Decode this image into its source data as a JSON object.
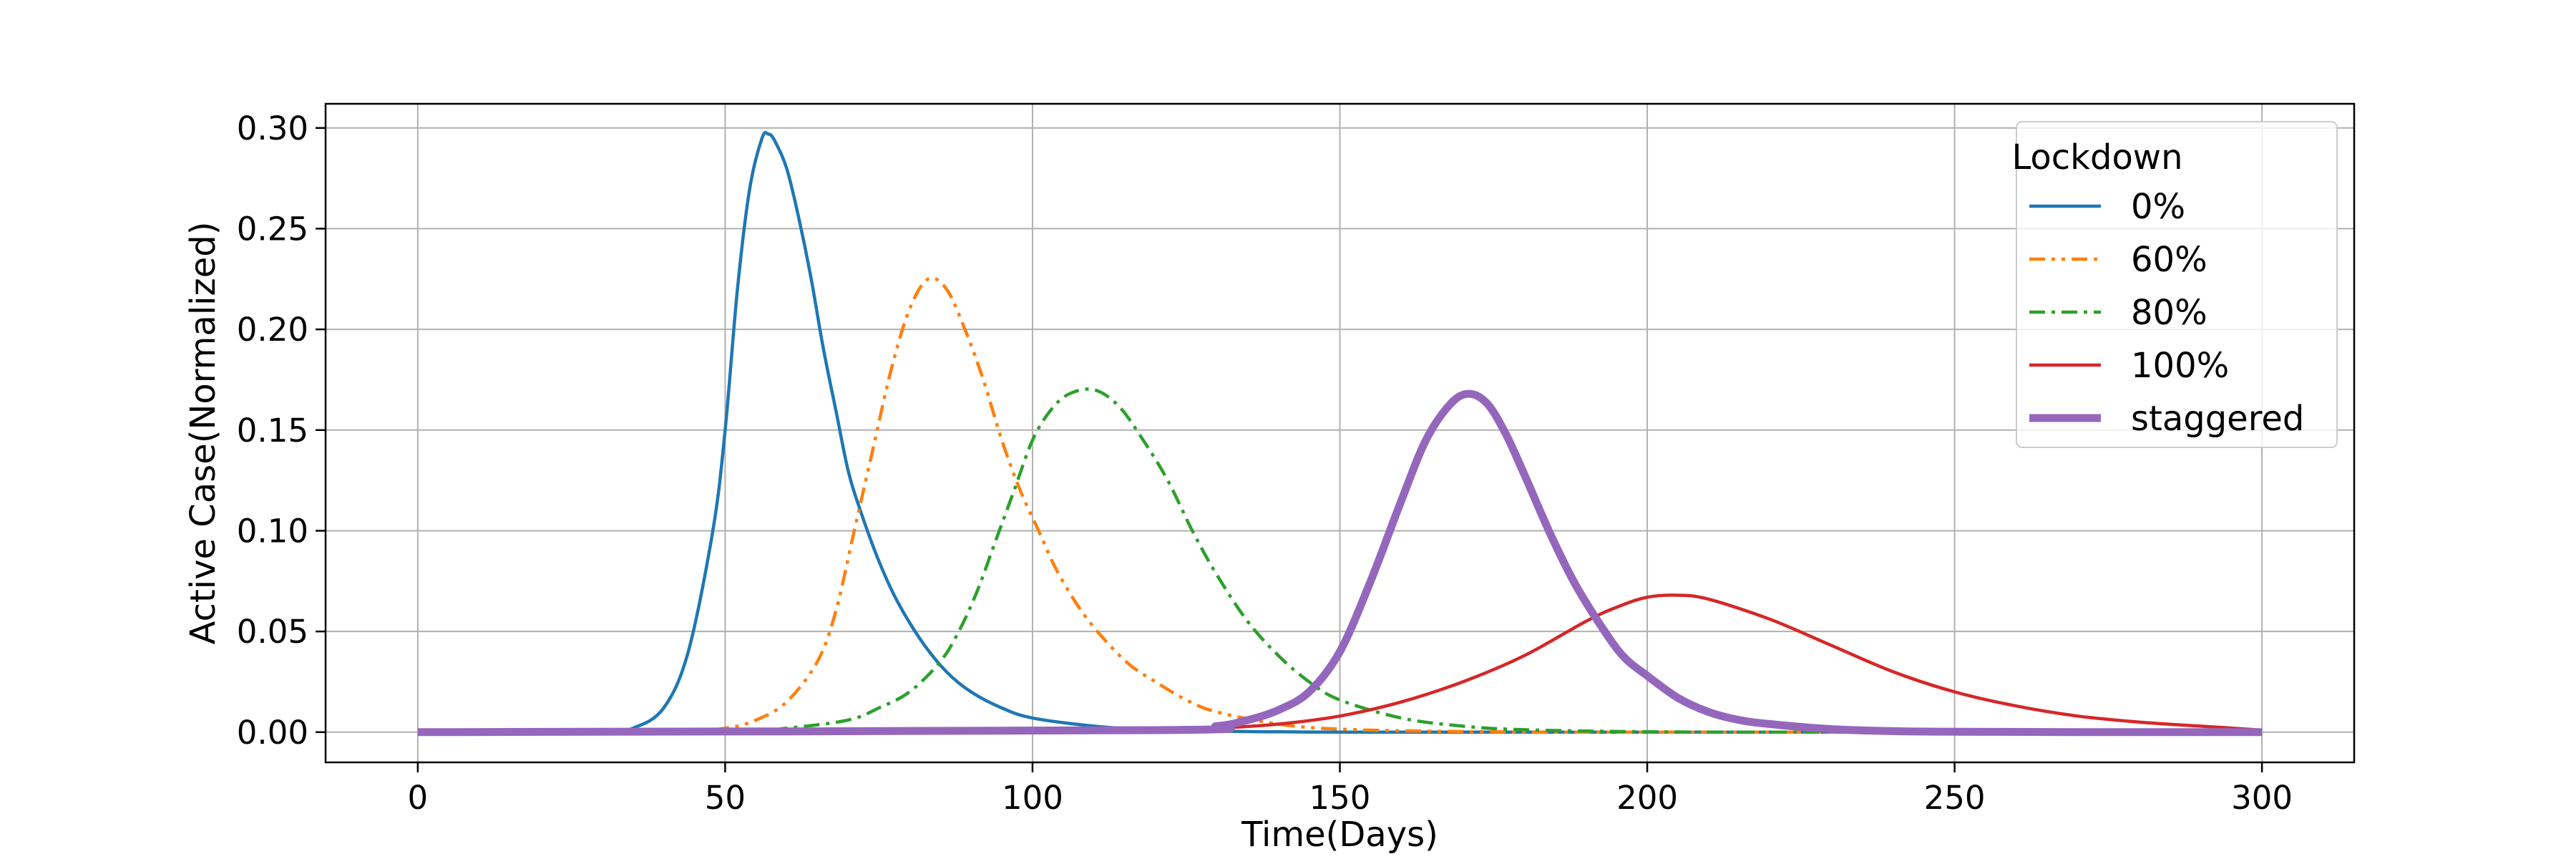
{
  "chart_data": {
    "type": "line",
    "title": "",
    "xlabel": "Time(Days)",
    "ylabel": "Active Case(Normalized)",
    "xlim": [
      -15,
      315
    ],
    "ylim": [
      -0.015,
      0.312
    ],
    "xticks": [
      0,
      50,
      100,
      150,
      200,
      250,
      300
    ],
    "xtick_labels": [
      "0",
      "50",
      "100",
      "150",
      "200",
      "250",
      "300"
    ],
    "yticks": [
      0.0,
      0.05,
      0.1,
      0.15,
      0.2,
      0.25,
      0.3
    ],
    "ytick_labels": [
      "0.00",
      "0.05",
      "0.10",
      "0.15",
      "0.20",
      "0.25",
      "0.30"
    ],
    "grid": true,
    "legend": {
      "title": "Lockdown",
      "placement": "top-right"
    },
    "series": [
      {
        "name": "0%",
        "color": "#1f77b4",
        "style": "solid",
        "x": [
          0,
          30,
          35,
          40,
          44,
          48,
          50,
          52,
          54,
          56,
          57,
          58,
          60,
          62,
          64,
          66,
          68,
          70,
          72,
          75,
          78,
          82,
          86,
          90,
          95,
          100,
          110,
          120,
          130,
          150,
          200,
          250,
          300
        ],
        "y": [
          0,
          0,
          0.002,
          0.012,
          0.04,
          0.1,
          0.15,
          0.22,
          0.27,
          0.295,
          0.297,
          0.294,
          0.28,
          0.255,
          0.225,
          0.19,
          0.16,
          0.13,
          0.11,
          0.085,
          0.065,
          0.045,
          0.03,
          0.02,
          0.012,
          0.007,
          0.003,
          0.001,
          0.0005,
          0,
          0,
          0,
          0
        ]
      },
      {
        "name": "60%",
        "color": "#ff7f0e",
        "style": "dashdotdot",
        "x": [
          0,
          40,
          50,
          55,
          60,
          65,
          68,
          71,
          74,
          77,
          80,
          83,
          86,
          89,
          92,
          95,
          98,
          101,
          104,
          108,
          112,
          116,
          120,
          125,
          130,
          140,
          150,
          170,
          200,
          250,
          300
        ],
        "y": [
          0,
          0,
          0.002,
          0.006,
          0.015,
          0.035,
          0.06,
          0.1,
          0.14,
          0.18,
          0.21,
          0.225,
          0.22,
          0.2,
          0.175,
          0.145,
          0.12,
          0.1,
          0.08,
          0.06,
          0.045,
          0.033,
          0.025,
          0.016,
          0.01,
          0.004,
          0.0015,
          0.0003,
          0,
          0,
          0
        ]
      },
      {
        "name": "80%",
        "color": "#2ca02c",
        "style": "dashdot",
        "x": [
          0,
          50,
          60,
          70,
          75,
          80,
          85,
          88,
          91,
          94,
          97,
          100,
          103,
          106,
          110,
          114,
          118,
          122,
          126,
          130,
          135,
          140,
          145,
          150,
          160,
          170,
          180,
          200,
          230,
          300
        ],
        "y": [
          0,
          0,
          0.002,
          0.006,
          0.012,
          0.02,
          0.035,
          0.05,
          0.07,
          0.095,
          0.12,
          0.145,
          0.16,
          0.168,
          0.17,
          0.162,
          0.145,
          0.125,
          0.1,
          0.078,
          0.055,
          0.038,
          0.025,
          0.016,
          0.007,
          0.003,
          0.0012,
          0.0002,
          0,
          0
        ]
      },
      {
        "name": "100%",
        "color": "#d62728",
        "style": "solid",
        "x": [
          0,
          100,
          120,
          130,
          140,
          150,
          160,
          170,
          180,
          190,
          195,
          200,
          205,
          210,
          220,
          230,
          240,
          250,
          260,
          270,
          280,
          290,
          300
        ],
        "y": [
          0,
          0,
          0.001,
          0.002,
          0.004,
          0.008,
          0.015,
          0.025,
          0.038,
          0.055,
          0.062,
          0.067,
          0.068,
          0.066,
          0.056,
          0.043,
          0.03,
          0.02,
          0.013,
          0.008,
          0.005,
          0.003,
          0.001
        ]
      },
      {
        "name": "staggered",
        "color": "#9467bd",
        "style": "thick",
        "x": [
          0,
          120,
          130,
          135,
          140,
          145,
          150,
          155,
          160,
          164,
          168,
          171,
          174,
          177,
          180,
          184,
          188,
          192,
          196,
          200,
          205,
          210,
          215,
          220,
          230,
          240,
          250,
          270,
          300
        ],
        "y": [
          0,
          0.001,
          0.003,
          0.006,
          0.011,
          0.02,
          0.04,
          0.075,
          0.115,
          0.145,
          0.163,
          0.168,
          0.163,
          0.148,
          0.128,
          0.1,
          0.075,
          0.055,
          0.038,
          0.028,
          0.017,
          0.01,
          0.006,
          0.004,
          0.0015,
          0.0005,
          0.0002,
          0,
          0
        ]
      }
    ]
  }
}
